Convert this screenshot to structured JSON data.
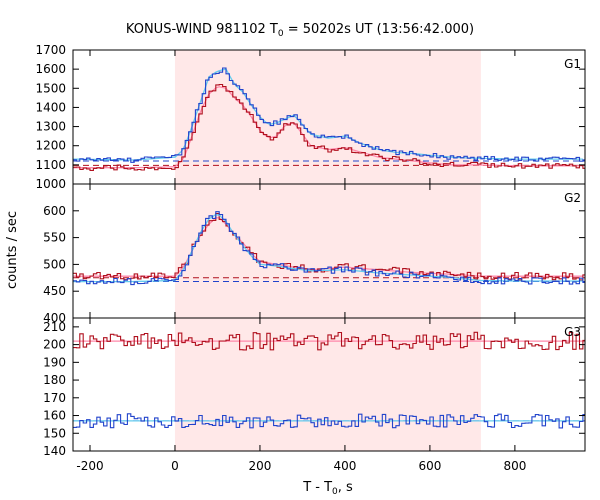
{
  "chart_data": {
    "type": "line",
    "title": {
      "main": "KONUS-WIND 981102 T",
      "sub": "0",
      "rest": " = 50202s UT (13:56:42.000)"
    },
    "xlabel": {
      "main": "T - T",
      "sub": "0",
      "rest": ", s"
    },
    "ylabel": "counts / sec",
    "xlim": [
      -240,
      965
    ],
    "x_ticks": [
      -200,
      0,
      200,
      400,
      600,
      800
    ],
    "shaded_interval": [
      0,
      720
    ],
    "colors": {
      "shade": "#ffe8e8",
      "red_series": "#b0101e",
      "blue_series": "#2244cc",
      "red_fit": "#ff88aa",
      "blue_fit": "#66ccee"
    },
    "panels": [
      {
        "label": "G1",
        "ylim": [
          1000,
          1700
        ],
        "y_ticks": [
          1000,
          1100,
          1200,
          1300,
          1400,
          1500,
          1600,
          1700
        ],
        "background_levels": {
          "red": 1097,
          "blue": 1120
        },
        "series": [
          {
            "color_key": "red_series",
            "anchors": [
              [
                -240,
                1085
              ],
              [
                -100,
                1085
              ],
              [
                0,
                1090
              ],
              [
                20,
                1130
              ],
              [
                40,
                1250
              ],
              [
                60,
                1380
              ],
              [
                80,
                1470
              ],
              [
                100,
                1510
              ],
              [
                120,
                1500
              ],
              [
                140,
                1450
              ],
              [
                160,
                1410
              ],
              [
                180,
                1350
              ],
              [
                200,
                1280
              ],
              [
                220,
                1240
              ],
              [
                240,
                1250
              ],
              [
                260,
                1310
              ],
              [
                280,
                1320
              ],
              [
                300,
                1260
              ],
              [
                320,
                1200
              ],
              [
                360,
                1180
              ],
              [
                400,
                1190
              ],
              [
                440,
                1165
              ],
              [
                480,
                1140
              ],
              [
                520,
                1130
              ],
              [
                560,
                1120
              ],
              [
                600,
                1110
              ],
              [
                650,
                1100
              ],
              [
                700,
                1100
              ],
              [
                800,
                1095
              ],
              [
                965,
                1095
              ]
            ],
            "noise": 14
          },
          {
            "color_key": "blue_series",
            "anchors": [
              [
                -240,
                1130
              ],
              [
                -100,
                1125
              ],
              [
                0,
                1140
              ],
              [
                20,
                1180
              ],
              [
                40,
                1300
              ],
              [
                60,
                1430
              ],
              [
                80,
                1560
              ],
              [
                100,
                1590
              ],
              [
                120,
                1600
              ],
              [
                140,
                1520
              ],
              [
                160,
                1480
              ],
              [
                180,
                1410
              ],
              [
                200,
                1350
              ],
              [
                220,
                1310
              ],
              [
                240,
                1320
              ],
              [
                260,
                1340
              ],
              [
                280,
                1360
              ],
              [
                300,
                1310
              ],
              [
                320,
                1260
              ],
              [
                360,
                1240
              ],
              [
                400,
                1250
              ],
              [
                440,
                1210
              ],
              [
                480,
                1180
              ],
              [
                520,
                1165
              ],
              [
                560,
                1160
              ],
              [
                600,
                1150
              ],
              [
                650,
                1140
              ],
              [
                700,
                1135
              ],
              [
                800,
                1130
              ],
              [
                965,
                1130
              ]
            ],
            "noise": 12
          }
        ]
      },
      {
        "label": "G2",
        "ylim": [
          400,
          650
        ],
        "y_ticks": [
          400,
          450,
          500,
          550,
          600
        ],
        "background_levels": {
          "red": 475,
          "blue": 468
        },
        "series": [
          {
            "color_key": "red_series",
            "anchors": [
              [
                -240,
                478
              ],
              [
                -100,
                478
              ],
              [
                0,
                478
              ],
              [
                20,
                495
              ],
              [
                40,
                525
              ],
              [
                60,
                555
              ],
              [
                80,
                575
              ],
              [
                100,
                590
              ],
              [
                120,
                575
              ],
              [
                140,
                555
              ],
              [
                160,
                540
              ],
              [
                180,
                520
              ],
              [
                200,
                505
              ],
              [
                240,
                500
              ],
              [
                280,
                495
              ],
              [
                320,
                490
              ],
              [
                400,
                495
              ],
              [
                480,
                490
              ],
              [
                560,
                485
              ],
              [
                640,
                482
              ],
              [
                720,
                478
              ],
              [
                800,
                478
              ],
              [
                965,
                478
              ]
            ],
            "noise": 7
          },
          {
            "color_key": "blue_series",
            "anchors": [
              [
                -240,
                468
              ],
              [
                -100,
                468
              ],
              [
                0,
                470
              ],
              [
                20,
                490
              ],
              [
                40,
                525
              ],
              [
                60,
                560
              ],
              [
                80,
                585
              ],
              [
                100,
                595
              ],
              [
                120,
                580
              ],
              [
                140,
                555
              ],
              [
                160,
                535
              ],
              [
                180,
                515
              ],
              [
                200,
                500
              ],
              [
                240,
                497
              ],
              [
                280,
                492
              ],
              [
                320,
                488
              ],
              [
                400,
                490
              ],
              [
                480,
                484
              ],
              [
                560,
                480
              ],
              [
                640,
                476
              ],
              [
                720,
                470
              ],
              [
                800,
                469
              ],
              [
                965,
                469
              ]
            ],
            "noise": 6
          }
        ]
      },
      {
        "label": "G3",
        "ylim": [
          140,
          215
        ],
        "y_ticks": [
          140,
          150,
          160,
          170,
          180,
          190,
          200,
          210
        ],
        "background_levels": {
          "red": 202,
          "blue": 157
        },
        "series": [
          {
            "color_key": "red_series",
            "anchors": [
              [
                -240,
                202
              ],
              [
                965,
                202
              ]
            ],
            "noise": 5
          },
          {
            "color_key": "blue_series",
            "anchors": [
              [
                -240,
                157
              ],
              [
                965,
                157
              ]
            ],
            "noise": 4
          }
        ]
      }
    ]
  }
}
